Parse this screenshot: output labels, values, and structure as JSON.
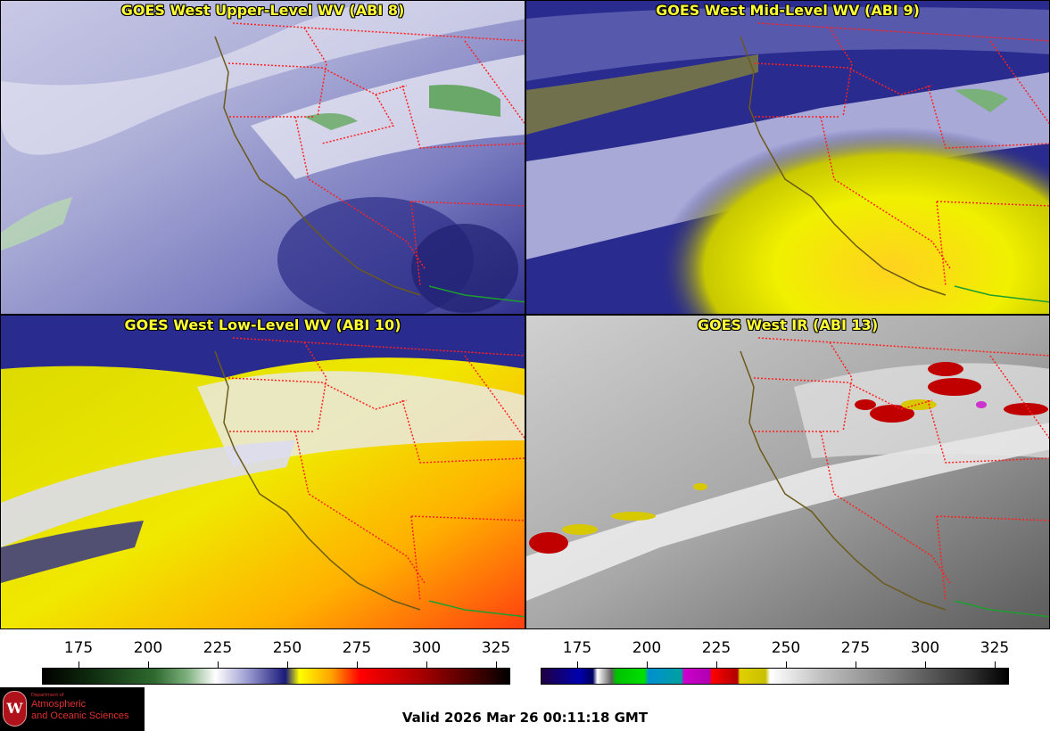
{
  "panels": [
    {
      "id": "upper",
      "title": "GOES West Upper-Level WV (ABI 8)"
    },
    {
      "id": "mid",
      "title": "GOES West Mid-Level WV (ABI 9)"
    },
    {
      "id": "low",
      "title": "GOES West Low-Level WV (ABI 10)"
    },
    {
      "id": "ir",
      "title": "GOES West IR (ABI 13)"
    }
  ],
  "colorbars": {
    "wv": {
      "ticks": [
        "175",
        "200",
        "225",
        "250",
        "275",
        "300",
        "325"
      ]
    },
    "ir": {
      "ticks": [
        "175",
        "200",
        "225",
        "250",
        "275",
        "300",
        "325"
      ]
    }
  },
  "valid_time": "Valid 2026 Mar 26 00:11:18 GMT",
  "logo": {
    "dept": "Department of",
    "line1": "Atmospheric",
    "line2": "and Oceanic Sciences",
    "seal": "W"
  },
  "colors": {
    "title_text": "#ffff33",
    "state_borders": "#ff2020",
    "coastline": "#6b5a1a",
    "mexico_border": "#1d9e2f"
  }
}
